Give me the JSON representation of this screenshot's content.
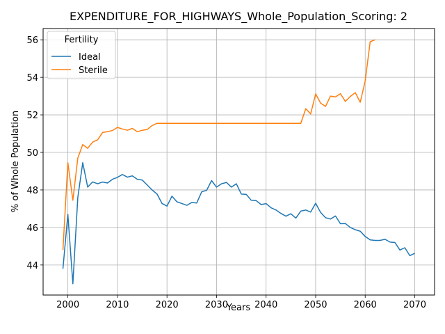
{
  "chart_data": {
    "type": "line",
    "title": "EXPENDITURE_FOR_HIGHWAYS_Whole_Population_Scoring: 2",
    "xlabel": "Years",
    "ylabel": "% of Whole Population",
    "xlim": [
      1995,
      2074
    ],
    "ylim": [
      42.4,
      56.6
    ],
    "xticks": [
      2000,
      2010,
      2020,
      2030,
      2040,
      2050,
      2060,
      2070
    ],
    "yticks": [
      44,
      46,
      48,
      50,
      52,
      54,
      56
    ],
    "grid": true,
    "legend": {
      "title": "Fertility",
      "position": "top-left"
    },
    "series": [
      {
        "name": "Ideal",
        "color": "#1f77b4",
        "x": [
          1999,
          2000,
          2001,
          2002,
          2003,
          2004,
          2005,
          2006,
          2007,
          2008,
          2009,
          2010,
          2011,
          2012,
          2013,
          2014,
          2015,
          2016,
          2017,
          2018,
          2019,
          2020,
          2021,
          2022,
          2023,
          2024,
          2025,
          2026,
          2027,
          2028,
          2029,
          2030,
          2031,
          2032,
          2033,
          2034,
          2035,
          2036,
          2037,
          2038,
          2039,
          2040,
          2041,
          2042,
          2043,
          2044,
          2045,
          2046,
          2047,
          2048,
          2049,
          2050,
          2051,
          2052,
          2053,
          2054,
          2055,
          2056,
          2057,
          2058,
          2059,
          2060,
          2061,
          2062,
          2063,
          2064,
          2065,
          2066,
          2067,
          2068,
          2069,
          2070
        ],
        "y": [
          43.8,
          46.7,
          43.0,
          47.6,
          49.45,
          48.15,
          48.43,
          48.33,
          48.42,
          48.37,
          48.57,
          48.67,
          48.82,
          48.68,
          48.75,
          48.57,
          48.53,
          48.26,
          48.0,
          47.78,
          47.28,
          47.14,
          47.67,
          47.37,
          47.28,
          47.18,
          47.33,
          47.3,
          47.9,
          47.98,
          48.5,
          48.15,
          48.33,
          48.4,
          48.15,
          48.33,
          47.78,
          47.76,
          47.45,
          47.43,
          47.22,
          47.27,
          47.05,
          46.93,
          46.75,
          46.6,
          46.73,
          46.5,
          46.87,
          46.93,
          46.82,
          47.29,
          46.8,
          46.52,
          46.45,
          46.61,
          46.2,
          46.21,
          46.0,
          45.88,
          45.8,
          45.52,
          45.34,
          45.31,
          45.31,
          45.37,
          45.22,
          45.2,
          44.8,
          44.92,
          44.5,
          44.62
        ]
      },
      {
        "name": "Sterile",
        "color": "#ff7f0e",
        "x": [
          1999,
          2000,
          2001,
          2002,
          2003,
          2004,
          2005,
          2006,
          2007,
          2008,
          2009,
          2010,
          2011,
          2012,
          2013,
          2014,
          2015,
          2016,
          2017,
          2018,
          2019,
          2020,
          2021,
          2022,
          2023,
          2024,
          2025,
          2026,
          2027,
          2028,
          2029,
          2030,
          2031,
          2032,
          2033,
          2034,
          2035,
          2036,
          2037,
          2038,
          2039,
          2040,
          2041,
          2042,
          2043,
          2044,
          2045,
          2046,
          2047,
          2048,
          2049,
          2050,
          2051,
          2052,
          2053,
          2054,
          2055,
          2056,
          2057,
          2058,
          2059,
          2060,
          2061,
          2062
        ],
        "y": [
          44.8,
          49.45,
          47.45,
          49.7,
          50.42,
          50.22,
          50.55,
          50.67,
          51.06,
          51.1,
          51.17,
          51.33,
          51.25,
          51.18,
          51.28,
          51.1,
          51.18,
          51.22,
          51.43,
          51.55,
          51.55,
          51.55,
          51.55,
          51.55,
          51.55,
          51.55,
          51.55,
          51.55,
          51.55,
          51.55,
          51.55,
          51.55,
          51.55,
          51.55,
          51.55,
          51.55,
          51.55,
          51.55,
          51.55,
          51.55,
          51.55,
          51.55,
          51.55,
          51.55,
          51.55,
          51.55,
          51.55,
          51.55,
          51.55,
          52.33,
          52.05,
          53.12,
          52.62,
          52.45,
          53.0,
          52.96,
          53.13,
          52.72,
          52.98,
          53.18,
          52.67,
          53.8,
          55.9,
          56.0
        ]
      }
    ]
  }
}
